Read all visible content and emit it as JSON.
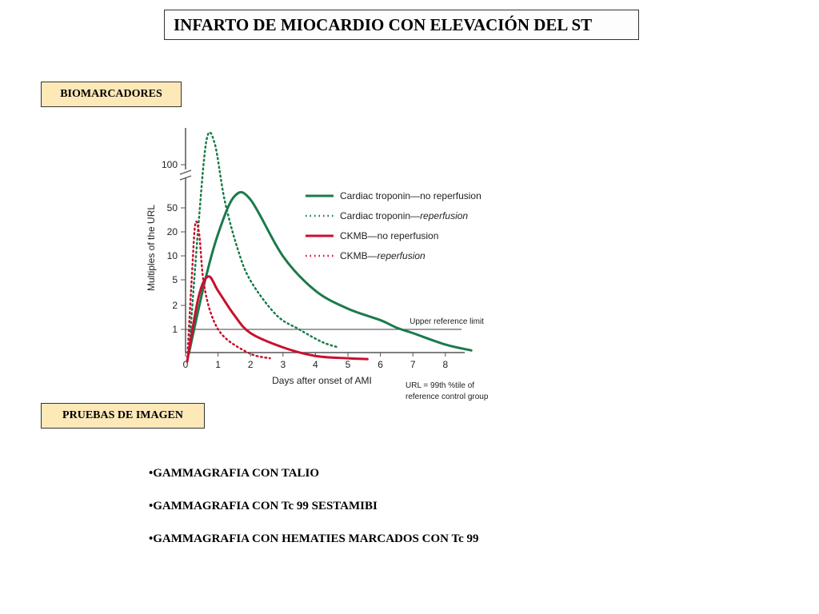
{
  "slide": {
    "title": "INFARTO DE MIOCARDIO CON ELEVACIÓN DEL ST",
    "section_biomarkers": "BIOMARCADORES",
    "section_imaging": "PRUEBAS DE IMAGEN",
    "imaging_items": [
      "GAMMAGRAFIA CON TALIO",
      "GAMMAGRAFIA CON Tc 99 SESTAMIBI",
      "GAMMAGRAFIA CON HEMATIES MARCADOS CON Tc 99"
    ]
  },
  "chart_data": {
    "type": "line",
    "xlabel": "Days after onset of AMI",
    "ylabel": "Multiples of the URL",
    "x_ticks": [
      0,
      1,
      2,
      3,
      4,
      5,
      6,
      7,
      8
    ],
    "y_ticks": [
      1,
      2,
      5,
      10,
      20,
      50,
      100
    ],
    "y_scale": "log",
    "y_axis_break": true,
    "xlim": [
      0,
      8.5
    ],
    "legend_position": "right",
    "reference_line": {
      "y": 1,
      "label": "Upper reference limit"
    },
    "footnote": "URL = 99th %tile of\nreference control group",
    "series": [
      {
        "name_plain": "Cardiac troponin",
        "name_italic": "no reperfusion",
        "name_italic_is_plain": true,
        "color": "#1b7a4a",
        "dash": "solid",
        "points": [
          [
            0.1,
            0.5
          ],
          [
            0.6,
            4
          ],
          [
            1.0,
            15
          ],
          [
            1.5,
            60
          ],
          [
            2,
            40
          ],
          [
            3,
            8
          ],
          [
            4,
            3
          ],
          [
            5,
            1.8
          ],
          [
            6,
            1.3
          ],
          [
            6.5,
            1.05
          ],
          [
            7,
            0.9
          ],
          [
            8,
            0.65
          ],
          [
            8.8,
            0.55
          ]
        ]
      },
      {
        "name_plain": "Cardiac troponin",
        "name_italic": "reperfusion",
        "name_italic_is_plain": false,
        "color": "#1b7a4a",
        "dash": "dotted",
        "points": [
          [
            0.1,
            0.5
          ],
          [
            0.4,
            20
          ],
          [
            0.65,
            150
          ],
          [
            0.9,
            140
          ],
          [
            1.2,
            40
          ],
          [
            1.6,
            10
          ],
          [
            2,
            4
          ],
          [
            2.8,
            1.5
          ],
          [
            3.5,
            1.0
          ],
          [
            4.2,
            0.7
          ],
          [
            4.7,
            0.6
          ]
        ]
      },
      {
        "name_plain": "CKMB",
        "name_italic": "no reperfusion",
        "name_italic_is_plain": true,
        "color": "#c8102e",
        "dash": "solid",
        "points": [
          [
            0.05,
            0.4
          ],
          [
            0.4,
            2.5
          ],
          [
            0.7,
            4.5
          ],
          [
            1.0,
            3
          ],
          [
            1.5,
            1.5
          ],
          [
            2,
            0.9
          ],
          [
            3,
            0.6
          ],
          [
            4,
            0.47
          ],
          [
            5,
            0.44
          ],
          [
            5.6,
            0.43
          ]
        ]
      },
      {
        "name_plain": "CKMB",
        "name_italic": "reperfusion",
        "name_italic_is_plain": false,
        "color": "#c8102e",
        "dash": "dotted",
        "points": [
          [
            0.05,
            0.4
          ],
          [
            0.2,
            5
          ],
          [
            0.3,
            20
          ],
          [
            0.42,
            15
          ],
          [
            0.55,
            4
          ],
          [
            0.8,
            1.5
          ],
          [
            1.2,
            0.8
          ],
          [
            2,
            0.5
          ],
          [
            2.6,
            0.44
          ]
        ]
      }
    ]
  }
}
